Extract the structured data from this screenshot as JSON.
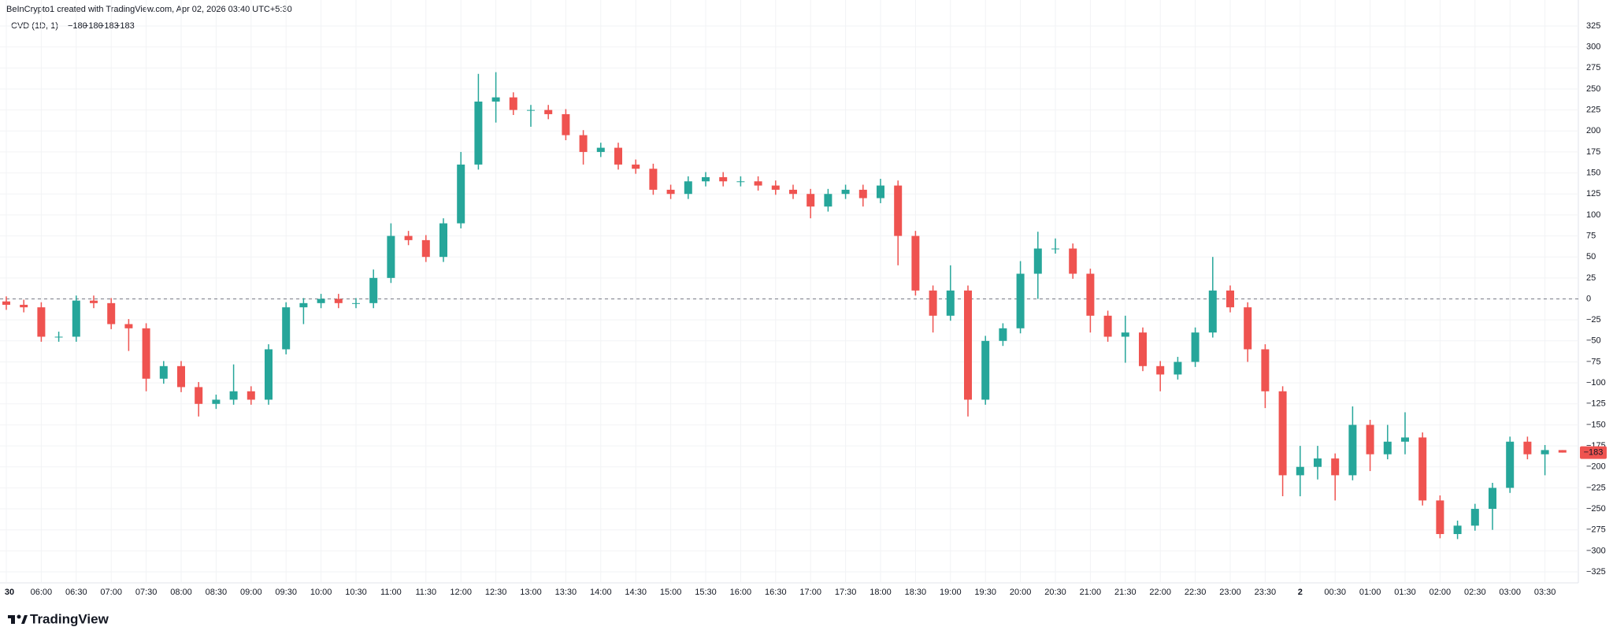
{
  "chart_data": {
    "type": "candlestick",
    "caption": "BeInCrypto1 created with TradingView.com, Apr 02, 2026 03:40 UTC+5:30",
    "title": "CVD (1D, 1)",
    "indicator_values": [
      {
        "value": -180,
        "label": "−180"
      },
      {
        "value": -180,
        "label": "−180"
      },
      {
        "value": -183,
        "label": "−183"
      },
      {
        "value": -183,
        "label": "−183"
      }
    ],
    "watermark": "TradingView",
    "categories": [
      "30",
      null,
      "06:00",
      null,
      "06:30",
      null,
      "07:00",
      null,
      "07:30",
      null,
      "08:00",
      null,
      "08:30",
      null,
      "09:00",
      null,
      "09:30",
      null,
      "10:00",
      null,
      "10:30",
      null,
      "11:00",
      null,
      "11:30",
      null,
      "12:00",
      null,
      "12:30",
      null,
      "13:00",
      null,
      "13:30",
      null,
      "14:00",
      null,
      "14:30",
      null,
      "15:00",
      null,
      "15:30",
      null,
      "16:00",
      null,
      "16:30",
      null,
      "17:00",
      null,
      "17:30",
      null,
      "18:00",
      null,
      "18:30",
      null,
      "19:00",
      null,
      "19:30",
      null,
      "20:00",
      null,
      "20:30",
      null,
      "21:00",
      null,
      "21:30",
      null,
      "22:00",
      null,
      "22:30",
      null,
      "23:00",
      null,
      "23:30",
      null,
      "2",
      null,
      "00:30",
      null,
      "01:00",
      null,
      "01:30",
      null,
      "02:00",
      null,
      "02:30",
      null,
      "03:00",
      null,
      "03:30",
      null
    ],
    "open": [
      -3,
      -7,
      -10,
      -45,
      -45,
      -2,
      -5,
      -30,
      -35,
      -95,
      -80,
      -105,
      -125,
      -120,
      -110,
      -120,
      -60,
      -10,
      -5,
      0,
      -5,
      -5,
      25,
      75,
      70,
      50,
      90,
      160,
      235,
      240,
      225,
      225,
      220,
      195,
      175,
      180,
      160,
      155,
      130,
      125,
      140,
      145,
      140,
      140,
      135,
      130,
      125,
      110,
      125,
      130,
      120,
      135,
      75,
      10,
      -20,
      10,
      -120,
      -50,
      -35,
      30,
      60,
      60,
      30,
      -20,
      -45,
      -40,
      -80,
      -90,
      -75,
      -40,
      10,
      -10,
      -60,
      -110,
      -210,
      -200,
      -190,
      -210,
      -150,
      -185,
      -170,
      -165,
      -240,
      -280,
      -270,
      -250,
      -225,
      -170,
      -185,
      -180
    ],
    "high": [
      3,
      -1,
      -4,
      -39,
      4,
      4,
      1,
      -24,
      -29,
      -74,
      -74,
      -99,
      -114,
      -78,
      -104,
      -54,
      -4,
      1,
      6,
      6,
      1,
      35,
      90,
      81,
      76,
      96,
      175,
      268,
      270,
      246,
      231,
      231,
      226,
      201,
      186,
      186,
      166,
      161,
      136,
      146,
      151,
      151,
      146,
      146,
      141,
      136,
      131,
      131,
      136,
      136,
      143,
      141,
      81,
      16,
      40,
      16,
      -44,
      -29,
      45,
      80,
      72,
      66,
      36,
      -14,
      -20,
      -34,
      -74,
      -69,
      -34,
      50,
      16,
      -4,
      -54,
      -104,
      -175,
      -175,
      -184,
      -128,
      -144,
      -150,
      -135,
      -159,
      -234,
      -264,
      -244,
      -219,
      -164,
      -164,
      -174,
      -180
    ],
    "low": [
      -13,
      -16,
      -51,
      -51,
      -51,
      -11,
      -36,
      -62,
      -110,
      -101,
      -111,
      -140,
      -131,
      -126,
      -126,
      -126,
      -66,
      -30,
      -11,
      -11,
      -11,
      -11,
      19,
      64,
      44,
      44,
      84,
      154,
      210,
      219,
      205,
      214,
      189,
      160,
      169,
      154,
      149,
      124,
      119,
      119,
      134,
      134,
      134,
      129,
      124,
      119,
      96,
      104,
      119,
      110,
      114,
      40,
      4,
      -40,
      -26,
      -140,
      -126,
      -56,
      -41,
      0,
      54,
      24,
      -40,
      -51,
      -76,
      -86,
      -110,
      -96,
      -81,
      -46,
      -16,
      -75,
      -130,
      -235,
      -235,
      -215,
      -240,
      -216,
      -205,
      -191,
      -185,
      -246,
      -285,
      -286,
      -276,
      -275,
      -231,
      -191,
      -210,
      -183
    ],
    "close": [
      -7,
      -10,
      -45,
      -45,
      -2,
      -5,
      -30,
      -35,
      -95,
      -80,
      -105,
      -125,
      -120,
      -110,
      -120,
      -60,
      -10,
      -5,
      0,
      -5,
      -5,
      25,
      75,
      70,
      50,
      90,
      160,
      235,
      240,
      225,
      225,
      220,
      195,
      175,
      180,
      160,
      155,
      130,
      125,
      140,
      145,
      140,
      140,
      135,
      130,
      125,
      110,
      125,
      130,
      120,
      135,
      75,
      10,
      -20,
      10,
      -120,
      -50,
      -35,
      30,
      60,
      60,
      30,
      -20,
      -45,
      -40,
      -80,
      -90,
      -75,
      -40,
      10,
      -10,
      -60,
      -110,
      -210,
      -200,
      -190,
      -210,
      -150,
      -185,
      -170,
      -165,
      -240,
      -280,
      -270,
      -250,
      -225,
      -170,
      -185,
      -180,
      -183
    ],
    "up_color": "#26a69a",
    "down_color": "#ef5350",
    "zero_line": 0,
    "last_price": {
      "value": -183,
      "label": "−183"
    },
    "ylim": [
      -345,
      345
    ],
    "yticks": [
      325,
      300,
      275,
      250,
      225,
      200,
      175,
      150,
      125,
      100,
      75,
      50,
      25,
      0,
      {
        "value": -25,
        "label": "−25"
      },
      {
        "value": -50,
        "label": "−50"
      },
      {
        "value": -75,
        "label": "−75"
      },
      {
        "value": -100,
        "label": "−100"
      },
      {
        "value": -125,
        "label": "−125"
      },
      {
        "value": -150,
        "label": "−150"
      },
      {
        "value": -175,
        "label": "−175"
      },
      {
        "value": -200,
        "label": "−200"
      },
      {
        "value": -225,
        "label": "−225"
      },
      {
        "value": -250,
        "label": "−250"
      },
      {
        "value": -275,
        "label": "−275"
      },
      {
        "value": -300,
        "label": "−300"
      },
      {
        "value": -325,
        "label": "−325"
      }
    ],
    "grid": true
  }
}
